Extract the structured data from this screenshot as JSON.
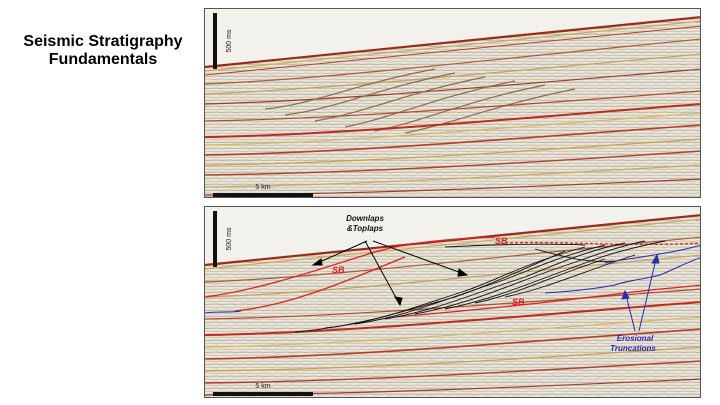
{
  "slide": {
    "title_line1": "Seismic Stratigraphy",
    "title_line2": "Fundamentals"
  },
  "panel_top": {
    "time_scale": "500 ms",
    "distance_scale": "5 km"
  },
  "panel_bottom": {
    "time_scale": "500 ms",
    "distance_scale": "5 km",
    "annotations": {
      "downlaps_line1": "Downlaps",
      "downlaps_line2": "&Toplaps",
      "sb_1": "SB",
      "sb_2": "SB",
      "sb_3": "SB",
      "erosional_line1": "Erosional",
      "erosional_line2": "Truncations"
    }
  },
  "colors": {
    "sequence_boundary": "#e02020",
    "interpretation_lines": "#111111",
    "truncation_lines": "#2a2ab0"
  }
}
